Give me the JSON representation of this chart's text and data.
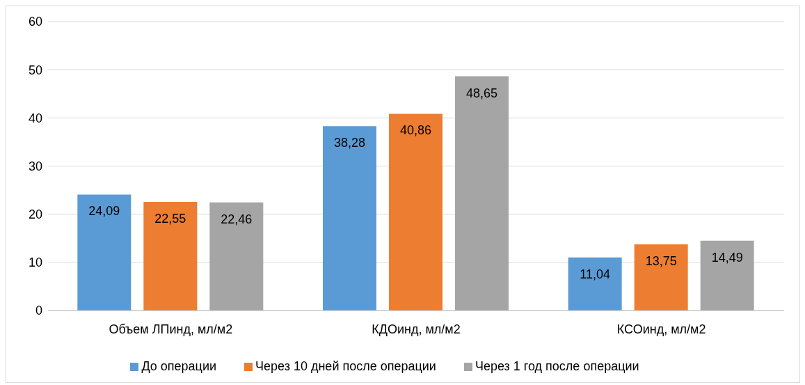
{
  "chart_data": {
    "type": "bar",
    "categories": [
      "Объем ЛПинд, мл/м2",
      "КДОинд, мл/м2",
      "КСОинд, мл/м2"
    ],
    "series": [
      {
        "name": "До операции",
        "color": "#5b9bd5",
        "values": [
          24.09,
          38.28,
          11.04
        ],
        "value_labels": [
          "24,09",
          "38,28",
          "11,04"
        ]
      },
      {
        "name": "Через 10 дней после операции",
        "color": "#ed7d31",
        "values": [
          22.55,
          40.86,
          13.75
        ],
        "value_labels": [
          "22,55",
          "40,86",
          "13,75"
        ]
      },
      {
        "name": "Через 1 год после операции",
        "color": "#a5a5a5",
        "values": [
          22.46,
          48.65,
          14.49
        ],
        "value_labels": [
          "22,46",
          "48,65",
          "14,49"
        ]
      }
    ],
    "ylim": [
      0,
      60
    ],
    "yticks": [
      0,
      10,
      20,
      30,
      40,
      50,
      60
    ],
    "grid": "y",
    "legend": "bottom"
  }
}
